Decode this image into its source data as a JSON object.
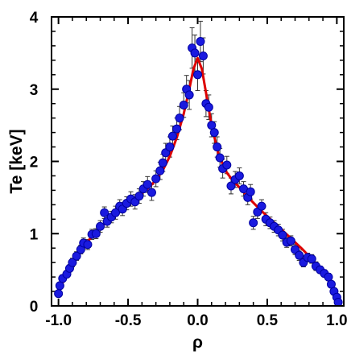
{
  "chart_data": {
    "type": "scatter",
    "xlabel": "ρ",
    "ylabel": "Te [keV]",
    "xlim": [
      -1.05,
      1.05
    ],
    "ylim": [
      0,
      4
    ],
    "x_ticks": [
      -1.0,
      -0.5,
      0.0,
      0.5,
      1.0
    ],
    "x_tick_labels": [
      "-1.0",
      "-0.5",
      "0.0",
      "0.5",
      "1.0"
    ],
    "y_ticks": [
      0,
      1,
      2,
      3,
      4
    ],
    "y_tick_labels": [
      "0",
      "1",
      "2",
      "3",
      "4"
    ],
    "grid": false,
    "colors": {
      "points": "#1a1adf",
      "point_edge": "#0000a0",
      "fit": "#dd0000",
      "errorbar": "#333333"
    },
    "series": [
      {
        "kind": "points_with_errorbars",
        "points": [
          {
            "x": -1.0,
            "y": 0.17,
            "err": 0.04
          },
          {
            "x": -0.99,
            "y": 0.28,
            "err": 0.04
          },
          {
            "x": -0.97,
            "y": 0.38,
            "err": 0.05
          },
          {
            "x": -0.94,
            "y": 0.44,
            "err": 0.05
          },
          {
            "x": -0.92,
            "y": 0.52,
            "err": 0.05
          },
          {
            "x": -0.9,
            "y": 0.6,
            "err": 0.06
          },
          {
            "x": -0.87,
            "y": 0.69,
            "err": 0.06
          },
          {
            "x": -0.84,
            "y": 0.78,
            "err": 0.06
          },
          {
            "x": -0.82,
            "y": 0.87,
            "err": 0.07
          },
          {
            "x": -0.79,
            "y": 0.85,
            "err": 0.07
          },
          {
            "x": -0.76,
            "y": 0.99,
            "err": 0.07
          },
          {
            "x": -0.73,
            "y": 1.0,
            "err": 0.07
          },
          {
            "x": -0.7,
            "y": 1.1,
            "err": 0.08
          },
          {
            "x": -0.67,
            "y": 1.29,
            "err": 0.08
          },
          {
            "x": -0.65,
            "y": 1.17,
            "err": 0.08
          },
          {
            "x": -0.62,
            "y": 1.23,
            "err": 0.08
          },
          {
            "x": -0.59,
            "y": 1.29,
            "err": 0.09
          },
          {
            "x": -0.56,
            "y": 1.38,
            "err": 0.09
          },
          {
            "x": -0.54,
            "y": 1.34,
            "err": 0.09
          },
          {
            "x": -0.51,
            "y": 1.42,
            "err": 0.09
          },
          {
            "x": -0.48,
            "y": 1.48,
            "err": 0.1
          },
          {
            "x": -0.45,
            "y": 1.44,
            "err": 0.1
          },
          {
            "x": -0.42,
            "y": 1.52,
            "err": 0.1
          },
          {
            "x": -0.39,
            "y": 1.62,
            "err": 0.1
          },
          {
            "x": -0.36,
            "y": 1.68,
            "err": 0.11
          },
          {
            "x": -0.33,
            "y": 1.57,
            "err": 0.11
          },
          {
            "x": -0.3,
            "y": 1.76,
            "err": 0.11
          },
          {
            "x": -0.27,
            "y": 1.87,
            "err": 0.12
          },
          {
            "x": -0.25,
            "y": 1.98,
            "err": 0.12
          },
          {
            "x": -0.23,
            "y": 2.12,
            "err": 0.13
          },
          {
            "x": -0.2,
            "y": 2.2,
            "err": 0.14
          },
          {
            "x": -0.18,
            "y": 2.35,
            "err": 0.14
          },
          {
            "x": -0.15,
            "y": 2.45,
            "err": 0.15
          },
          {
            "x": -0.13,
            "y": 2.6,
            "err": 0.16
          },
          {
            "x": -0.1,
            "y": 2.78,
            "err": 0.17
          },
          {
            "x": -0.08,
            "y": 3.0,
            "err": 0.19
          },
          {
            "x": -0.06,
            "y": 2.92,
            "err": 0.2
          },
          {
            "x": -0.04,
            "y": 3.57,
            "err": 0.28
          },
          {
            "x": -0.02,
            "y": 3.5,
            "err": 0.25
          },
          {
            "x": 0.0,
            "y": 3.2,
            "err": 0.22
          },
          {
            "x": 0.02,
            "y": 3.66,
            "err": 0.28
          },
          {
            "x": 0.04,
            "y": 3.46,
            "err": 0.25
          },
          {
            "x": 0.06,
            "y": 2.8,
            "err": 0.18
          },
          {
            "x": 0.08,
            "y": 2.75,
            "err": 0.17
          },
          {
            "x": 0.1,
            "y": 2.5,
            "err": 0.16
          },
          {
            "x": 0.12,
            "y": 2.4,
            "err": 0.15
          },
          {
            "x": 0.14,
            "y": 2.2,
            "err": 0.14
          },
          {
            "x": 0.16,
            "y": 2.05,
            "err": 0.13
          },
          {
            "x": 0.18,
            "y": 1.9,
            "err": 0.13
          },
          {
            "x": 0.21,
            "y": 1.95,
            "err": 0.12
          },
          {
            "x": 0.24,
            "y": 1.66,
            "err": 0.11
          },
          {
            "x": 0.27,
            "y": 1.75,
            "err": 0.11
          },
          {
            "x": 0.3,
            "y": 1.8,
            "err": 0.11
          },
          {
            "x": 0.33,
            "y": 1.62,
            "err": 0.1
          },
          {
            "x": 0.36,
            "y": 1.5,
            "err": 0.1
          },
          {
            "x": 0.38,
            "y": 1.58,
            "err": 0.1
          },
          {
            "x": 0.4,
            "y": 1.15,
            "err": 0.09
          },
          {
            "x": 0.43,
            "y": 1.3,
            "err": 0.09
          },
          {
            "x": 0.46,
            "y": 1.38,
            "err": 0.09
          },
          {
            "x": 0.49,
            "y": 1.2,
            "err": 0.09
          },
          {
            "x": 0.52,
            "y": 1.15,
            "err": 0.08
          },
          {
            "x": 0.55,
            "y": 1.1,
            "err": 0.08
          },
          {
            "x": 0.58,
            "y": 1.05,
            "err": 0.08
          },
          {
            "x": 0.61,
            "y": 0.98,
            "err": 0.08
          },
          {
            "x": 0.64,
            "y": 0.88,
            "err": 0.07
          },
          {
            "x": 0.67,
            "y": 0.9,
            "err": 0.07
          },
          {
            "x": 0.7,
            "y": 0.78,
            "err": 0.07
          },
          {
            "x": 0.73,
            "y": 0.7,
            "err": 0.07
          },
          {
            "x": 0.76,
            "y": 0.6,
            "err": 0.06
          },
          {
            "x": 0.79,
            "y": 0.67,
            "err": 0.06
          },
          {
            "x": 0.82,
            "y": 0.65,
            "err": 0.06
          },
          {
            "x": 0.85,
            "y": 0.55,
            "err": 0.06
          },
          {
            "x": 0.88,
            "y": 0.5,
            "err": 0.05
          },
          {
            "x": 0.91,
            "y": 0.45,
            "err": 0.05
          },
          {
            "x": 0.94,
            "y": 0.4,
            "err": 0.05
          },
          {
            "x": 0.96,
            "y": 0.3,
            "err": 0.04
          },
          {
            "x": 0.98,
            "y": 0.2,
            "err": 0.04
          },
          {
            "x": 1.0,
            "y": 0.12,
            "err": 0.04
          },
          {
            "x": 1.01,
            "y": 0.05,
            "err": 0.03
          }
        ]
      },
      {
        "kind": "fit_curve",
        "points": [
          {
            "x": -1.0,
            "y": 0.17
          },
          {
            "x": -0.95,
            "y": 0.42
          },
          {
            "x": -0.9,
            "y": 0.6
          },
          {
            "x": -0.85,
            "y": 0.74
          },
          {
            "x": -0.8,
            "y": 0.87
          },
          {
            "x": -0.75,
            "y": 0.98
          },
          {
            "x": -0.7,
            "y": 1.08
          },
          {
            "x": -0.65,
            "y": 1.17
          },
          {
            "x": -0.6,
            "y": 1.26
          },
          {
            "x": -0.55,
            "y": 1.34
          },
          {
            "x": -0.5,
            "y": 1.42
          },
          {
            "x": -0.45,
            "y": 1.49
          },
          {
            "x": -0.4,
            "y": 1.56
          },
          {
            "x": -0.35,
            "y": 1.64
          },
          {
            "x": -0.3,
            "y": 1.74
          },
          {
            "x": -0.25,
            "y": 1.88
          },
          {
            "x": -0.2,
            "y": 2.07
          },
          {
            "x": -0.15,
            "y": 2.33
          },
          {
            "x": -0.1,
            "y": 2.66
          },
          {
            "x": -0.06,
            "y": 3.0
          },
          {
            "x": -0.03,
            "y": 3.28
          },
          {
            "x": 0.0,
            "y": 3.43
          },
          {
            "x": 0.03,
            "y": 3.28
          },
          {
            "x": 0.06,
            "y": 2.95
          },
          {
            "x": 0.1,
            "y": 2.5
          },
          {
            "x": 0.15,
            "y": 2.1
          },
          {
            "x": 0.2,
            "y": 1.87
          },
          {
            "x": 0.25,
            "y": 1.74
          },
          {
            "x": 0.3,
            "y": 1.64
          },
          {
            "x": 0.35,
            "y": 1.53
          },
          {
            "x": 0.4,
            "y": 1.43
          },
          {
            "x": 0.45,
            "y": 1.33
          },
          {
            "x": 0.5,
            "y": 1.24
          },
          {
            "x": 0.55,
            "y": 1.15
          },
          {
            "x": 0.6,
            "y": 1.06
          },
          {
            "x": 0.65,
            "y": 0.97
          },
          {
            "x": 0.7,
            "y": 0.88
          },
          {
            "x": 0.75,
            "y": 0.79
          },
          {
            "x": 0.8,
            "y": 0.69
          },
          {
            "x": 0.85,
            "y": 0.58
          },
          {
            "x": 0.9,
            "y": 0.46
          },
          {
            "x": 0.95,
            "y": 0.32
          },
          {
            "x": 1.0,
            "y": 0.14
          },
          {
            "x": 1.02,
            "y": 0.05
          }
        ]
      }
    ]
  }
}
